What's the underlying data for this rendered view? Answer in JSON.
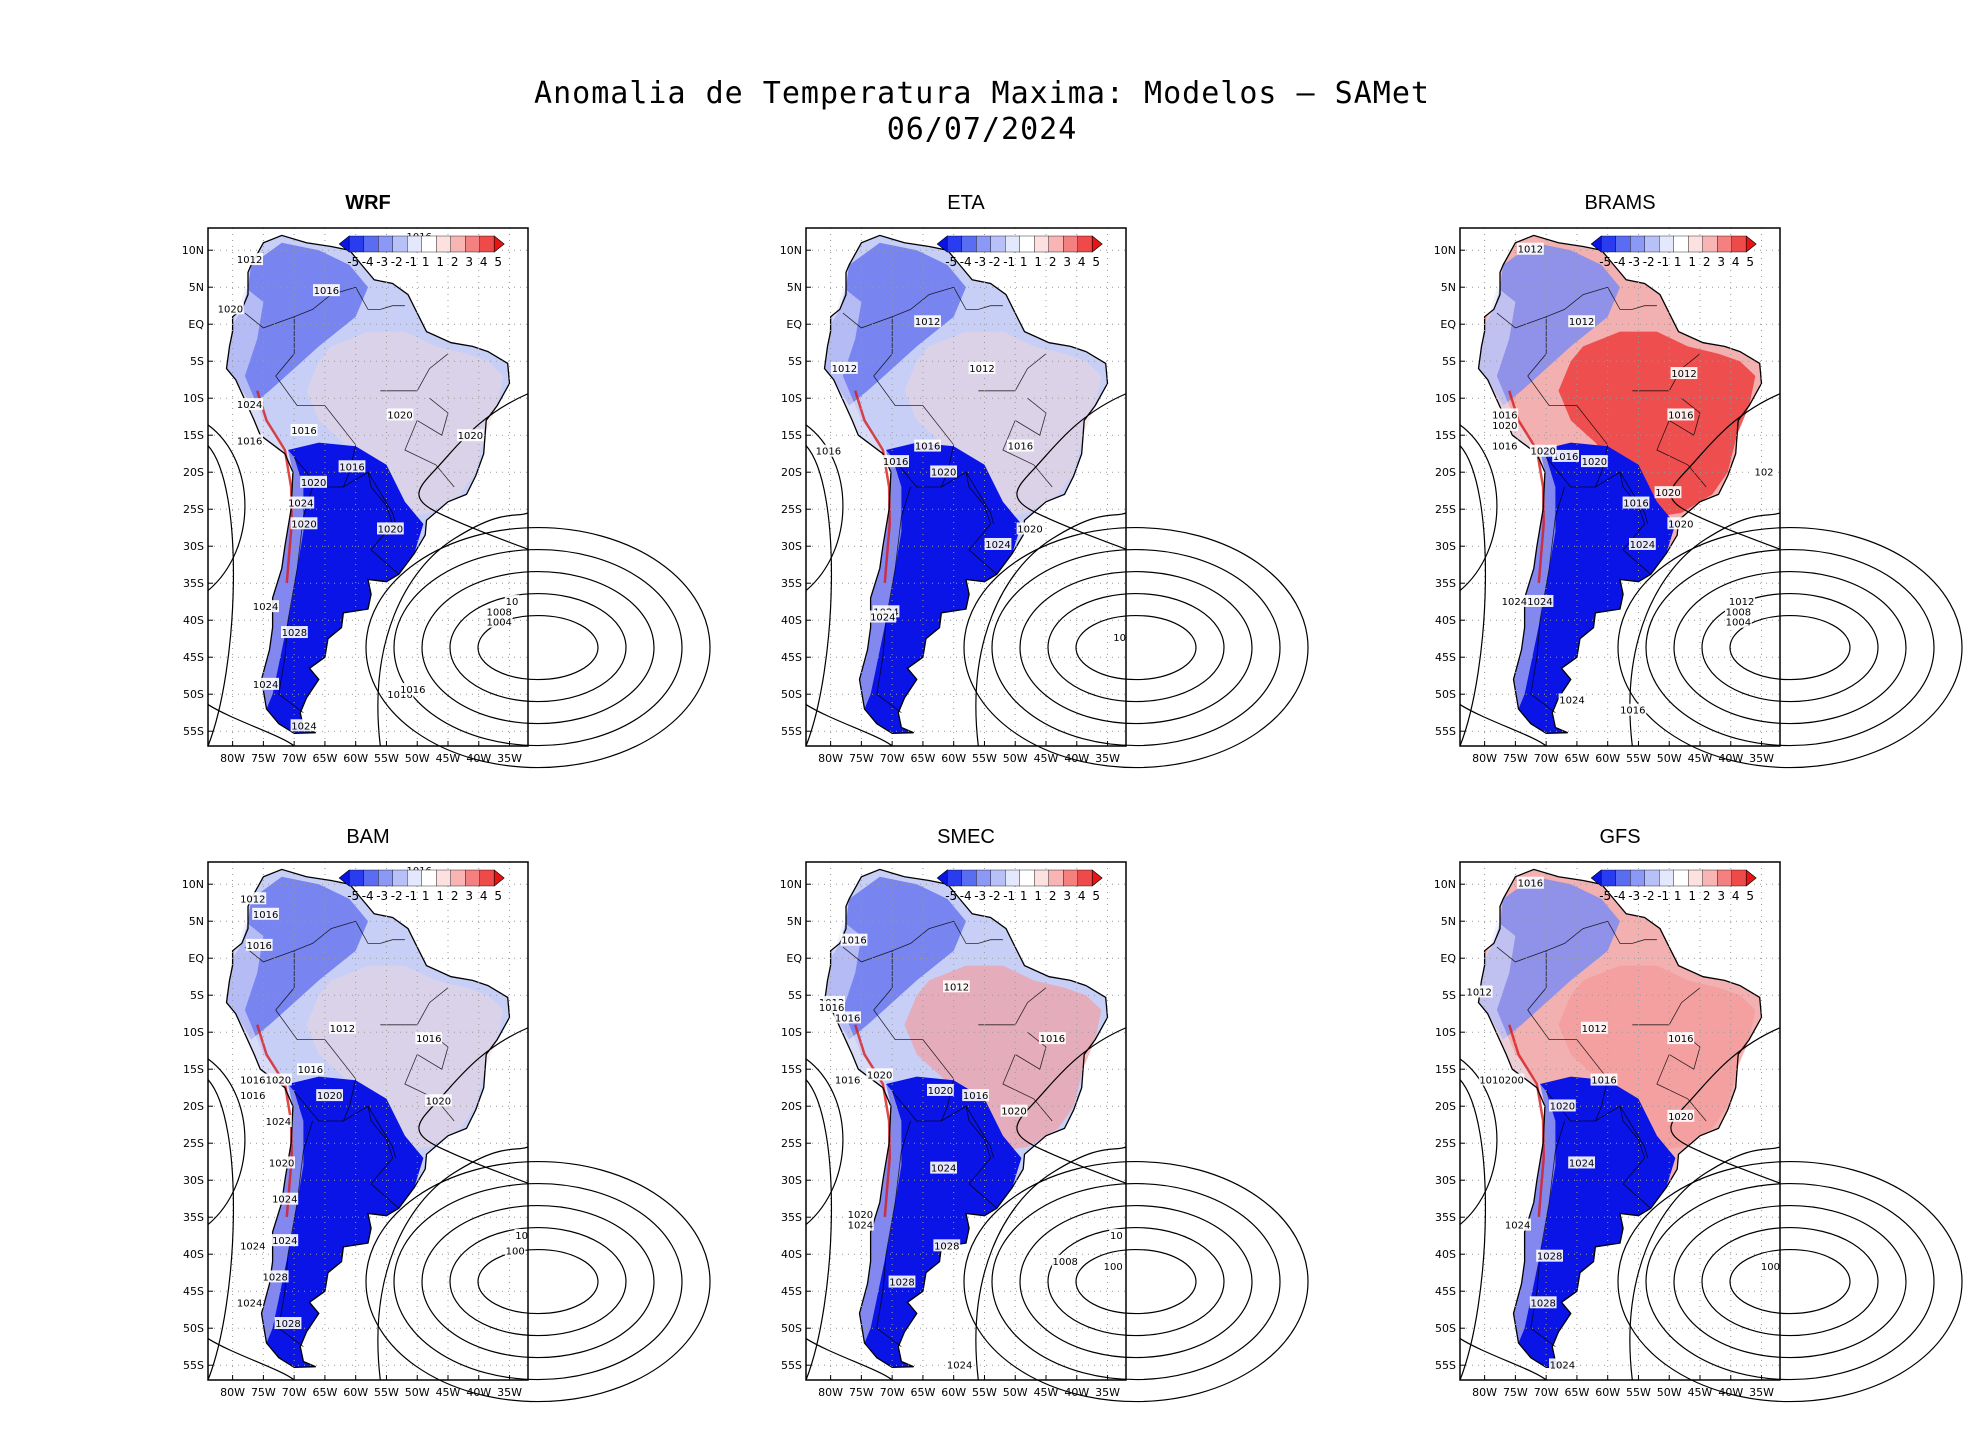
{
  "title": {
    "line1": "Anomalia de Temperatura Maxima: Modelos — SAMet",
    "line2": "06/07/2024"
  },
  "axes": {
    "lat_labels": [
      "10N",
      "5N",
      "EQ",
      "5S",
      "10S",
      "15S",
      "20S",
      "25S",
      "30S",
      "35S",
      "40S",
      "45S",
      "50S",
      "55S"
    ],
    "lon_labels": [
      "80W",
      "75W",
      "70W",
      "65W",
      "60W",
      "55W",
      "50W",
      "45W",
      "40W",
      "35W"
    ]
  },
  "colorbar": {
    "labels": [
      "-5",
      "-4",
      "-3",
      "-2",
      "-1",
      "1",
      "1",
      "2",
      "3",
      "4",
      "5"
    ],
    "colors": [
      "#0a14e6",
      "#2a3cf0",
      "#5a6cf2",
      "#8c98f5",
      "#b8c0f8",
      "#e4e8fc",
      "#ffffff",
      "#fde0e0",
      "#f9b4b4",
      "#f48080",
      "#ee4a4a",
      "#e61414"
    ]
  },
  "panels": [
    {
      "name": "WRF",
      "bold": true,
      "warm": 0.12,
      "isobars": [
        "1016",
        "1012",
        "1016",
        "1020",
        "1024",
        "1016",
        "1016",
        "1016",
        "1020",
        "1020",
        "1020",
        "1024",
        "1020",
        "1020",
        "1024",
        "1028",
        "1024",
        "1024",
        "1016",
        "1008",
        "1004",
        "10",
        "1016"
      ]
    },
    {
      "name": "ETA",
      "bold": false,
      "warm": 0.18,
      "isobars": [
        "1012",
        "1012",
        "1012",
        "1016",
        "1016",
        "1016",
        "1020",
        "1016",
        "1020",
        "1024",
        "1024",
        "1024",
        "10"
      ]
    },
    {
      "name": "BRAMS",
      "bold": false,
      "warm": 0.75,
      "isobars": [
        "1012",
        "1012",
        "1012",
        "1016",
        "1020",
        "1016",
        "1016",
        "1020",
        "1016",
        "1020",
        "1016",
        "1020",
        "1020",
        "1024",
        "1024",
        "1024",
        "1024",
        "1012",
        "1008",
        "1004",
        "1016",
        "102"
      ]
    },
    {
      "name": "BAM",
      "bold": false,
      "warm": 0.1,
      "isobars": [
        "1016",
        "1012",
        "1016",
        "1016",
        "1012",
        "1016",
        "1016",
        "1016",
        "1020",
        "1020",
        "1020",
        "1016",
        "1024",
        "1020",
        "1024",
        "1024",
        "1028",
        "1024",
        "1028",
        "1024",
        "10",
        "100"
      ]
    },
    {
      "name": "SMEC",
      "bold": false,
      "warm": 0.45,
      "isobars": [
        "1016",
        "1012",
        "1012",
        "1016",
        "1020",
        "1016",
        "1016",
        "1020",
        "1016",
        "1020",
        "1016",
        "1024",
        "1020",
        "1024",
        "1028",
        "1028",
        "1024",
        "1008",
        "100",
        "10"
      ]
    },
    {
      "name": "GFS",
      "bold": false,
      "warm": 0.6,
      "isobars": [
        "1016",
        "1012",
        "1012",
        "1016",
        "1010200",
        "1016",
        "1020",
        "1020",
        "1024",
        "1024",
        "1028",
        "1028",
        "1024",
        "100"
      ]
    }
  ]
}
